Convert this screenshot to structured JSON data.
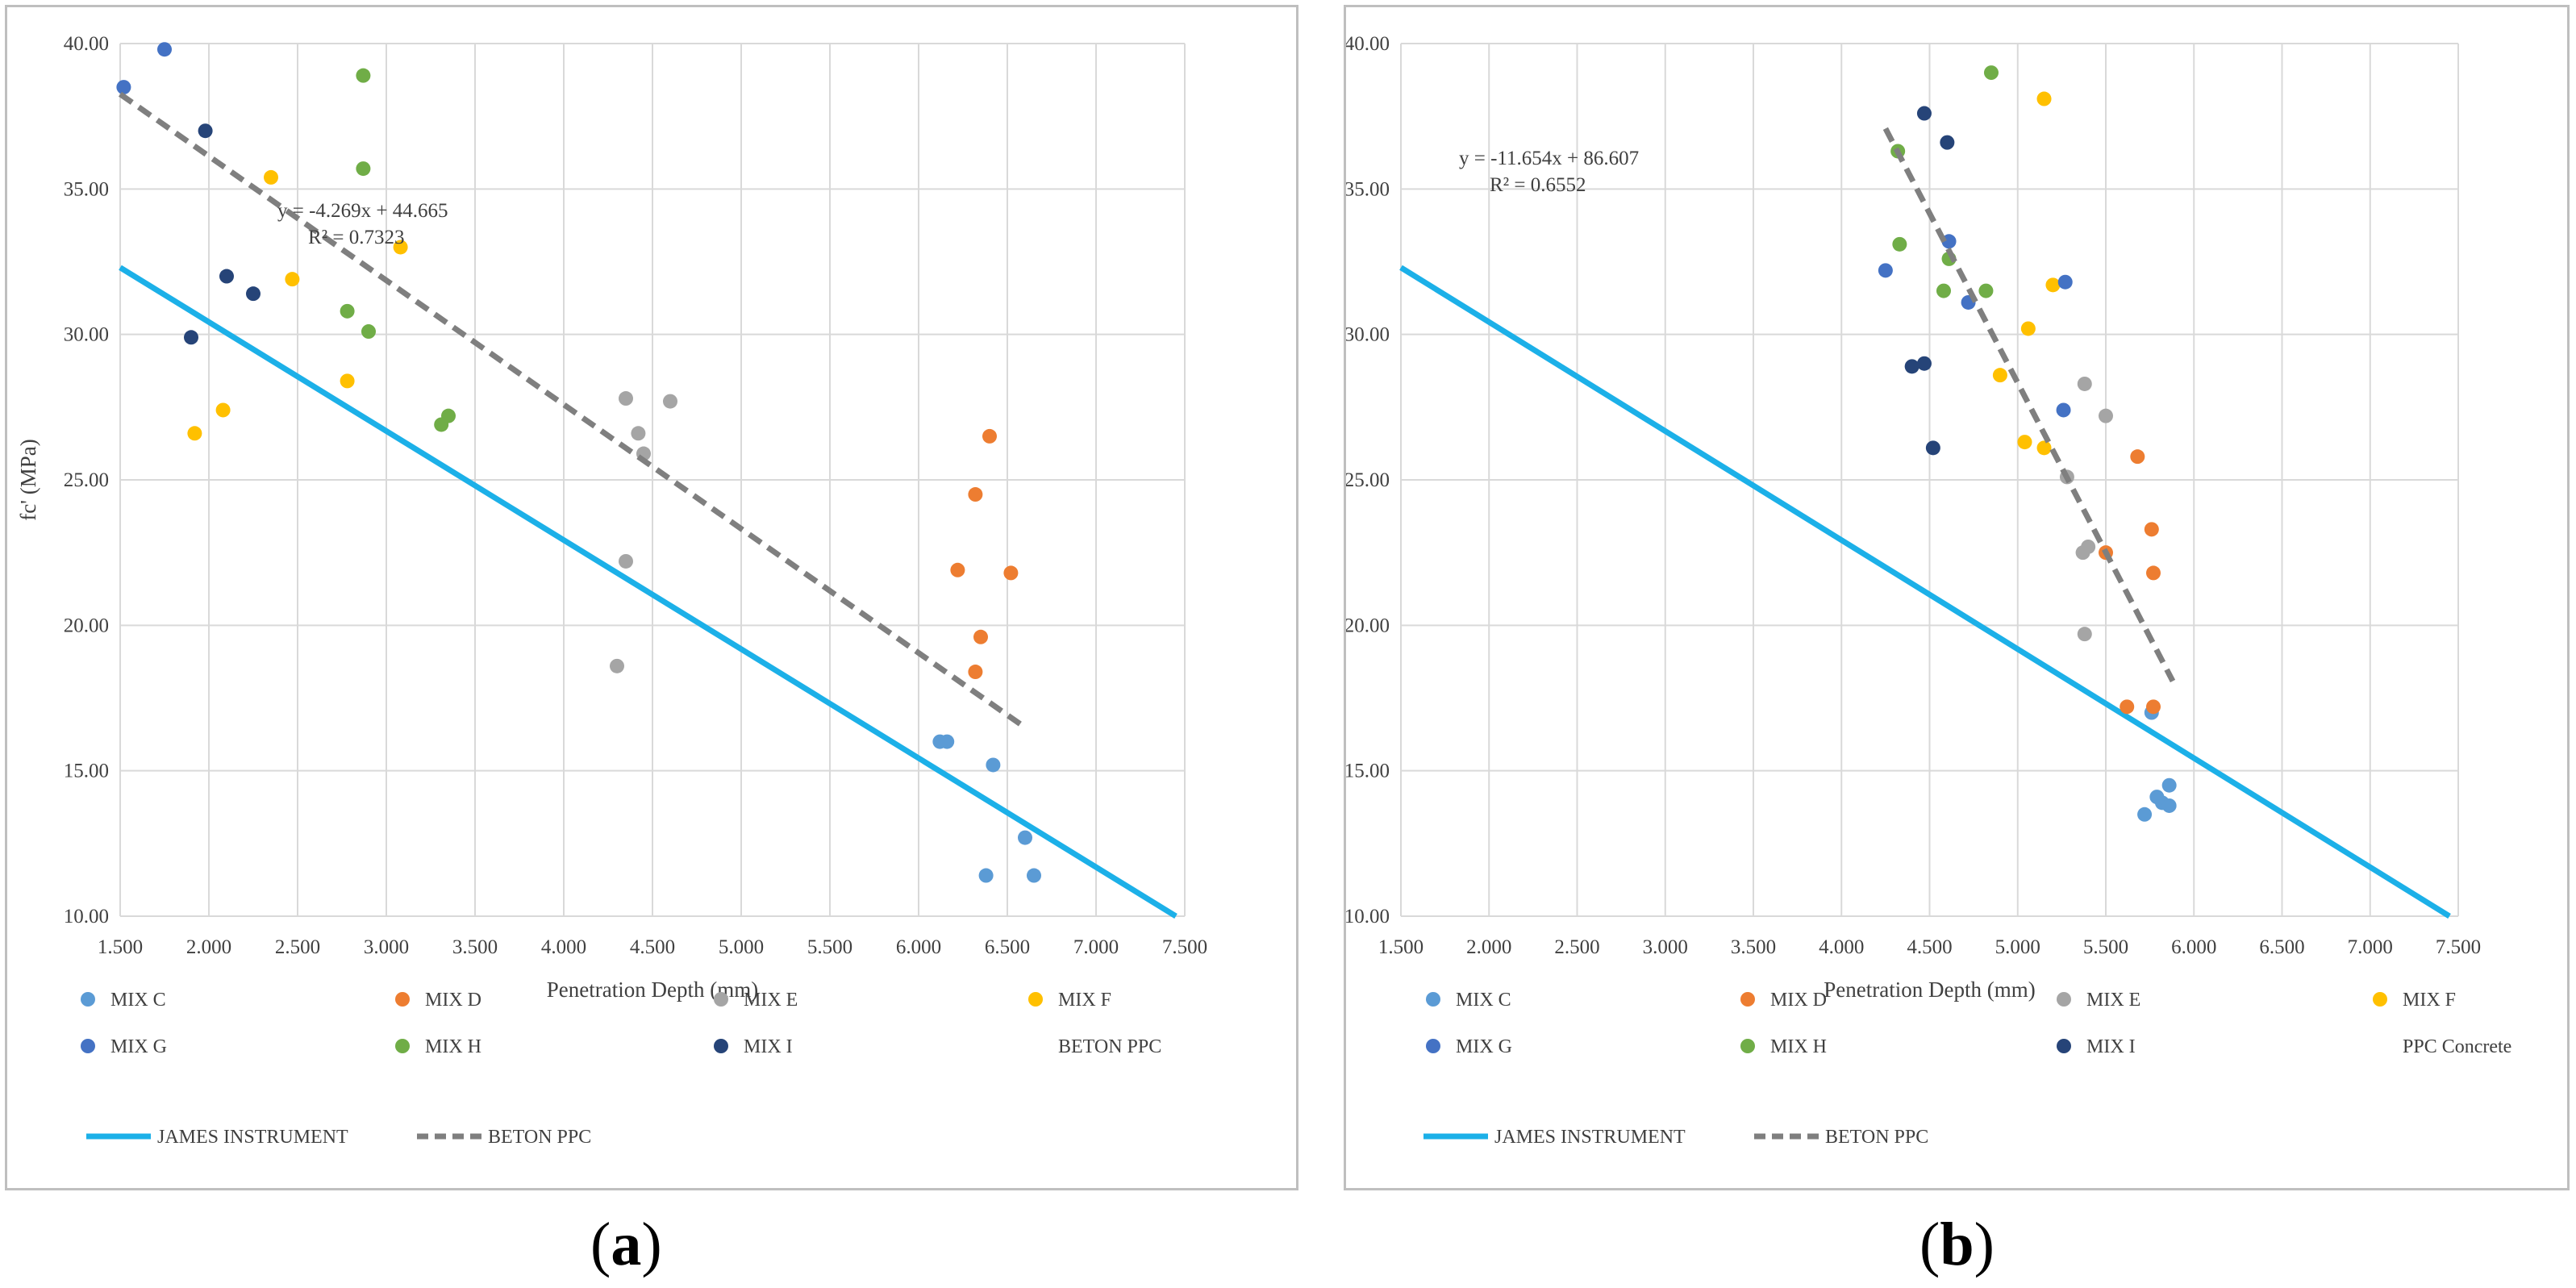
{
  "colors": {
    "MIX C": "#5b9bd5",
    "MIX D": "#ed7d31",
    "MIX E": "#a5a5a5",
    "MIX F": "#ffc000",
    "MIX G": "#4472c4",
    "MIX H": "#70ad47",
    "MIX I": "#264478",
    "JAMES INSTRUMENT": "#1cb0e8",
    "BETON PPC": "#7f7f7f",
    "grid": "#d9d9d9"
  },
  "chart_data": [
    {
      "type": "scatter",
      "panel_label": "a",
      "caption": {
        "open": "(",
        "letter": "a",
        "close": ")"
      },
      "title": "",
      "xlabel": "Penetration Depth (mm)",
      "ylabel": "fc' (MPa)",
      "xlim": [
        1.5,
        7.5
      ],
      "ylim": [
        10,
        40
      ],
      "xticks": [
        "1.500",
        "2.000",
        "2.500",
        "3.000",
        "3.500",
        "4.000",
        "4.500",
        "5.000",
        "5.500",
        "6.000",
        "6.500",
        "7.000",
        "7.500"
      ],
      "yticks": [
        "10.00",
        "15.00",
        "20.00",
        "25.00",
        "30.00",
        "35.00",
        "40.00"
      ],
      "grid": true,
      "series": [
        {
          "name": "MIX C",
          "points": [
            [
              6.12,
              16.0
            ],
            [
              6.16,
              16.0
            ],
            [
              6.42,
              15.2
            ],
            [
              6.6,
              12.7
            ],
            [
              6.38,
              11.4
            ],
            [
              6.65,
              11.4
            ]
          ]
        },
        {
          "name": "MIX D",
          "points": [
            [
              6.4,
              26.5
            ],
            [
              6.32,
              24.5
            ],
            [
              6.22,
              21.9
            ],
            [
              6.52,
              21.8
            ],
            [
              6.35,
              19.6
            ],
            [
              6.32,
              18.4
            ]
          ]
        },
        {
          "name": "MIX E",
          "points": [
            [
              4.35,
              27.8
            ],
            [
              4.6,
              27.7
            ],
            [
              4.42,
              26.6
            ],
            [
              4.45,
              25.9
            ],
            [
              4.35,
              22.2
            ],
            [
              4.3,
              18.6
            ]
          ]
        },
        {
          "name": "MIX F",
          "points": [
            [
              2.35,
              35.4
            ],
            [
              3.08,
              33.0
            ],
            [
              2.47,
              31.9
            ],
            [
              2.78,
              28.4
            ],
            [
              2.08,
              27.4
            ],
            [
              1.92,
              26.6
            ]
          ]
        },
        {
          "name": "MIX G",
          "points": [
            [
              1.75,
              39.8
            ],
            [
              1.52,
              38.5
            ]
          ]
        },
        {
          "name": "MIX H",
          "points": [
            [
              2.87,
              38.9
            ],
            [
              2.87,
              35.7
            ],
            [
              2.78,
              30.8
            ],
            [
              2.9,
              30.1
            ],
            [
              3.35,
              27.2
            ],
            [
              3.31,
              26.9
            ]
          ]
        },
        {
          "name": "MIX I",
          "points": [
            [
              1.98,
              37.0
            ],
            [
              2.1,
              32.0
            ],
            [
              2.25,
              31.4
            ],
            [
              1.9,
              29.9
            ]
          ]
        }
      ],
      "reference_line": {
        "name": "JAMES INSTRUMENT",
        "x": [
          1.5,
          7.45
        ],
        "y": [
          32.3,
          10.0
        ]
      },
      "trendline": {
        "name": "BETON PPC",
        "slope": -4.269,
        "intercept": 44.665,
        "x_range": [
          1.5,
          6.6
        ],
        "equation": "y = -4.269x + 44.665",
        "r_squared": "R² = 0.7323"
      },
      "legend": {
        "position": "bottom",
        "items": [
          "MIX C",
          "MIX D",
          "MIX E",
          "MIX F",
          "MIX G",
          "MIX H",
          "MIX I",
          "BETON PPC"
        ],
        "line_items": [
          "JAMES INSTRUMENT",
          "BETON PPC"
        ]
      }
    },
    {
      "type": "scatter",
      "panel_label": "b",
      "caption": {
        "open": "(",
        "letter": "b",
        "close": ")"
      },
      "title": "",
      "xlabel": "Penetration Depth (mm)",
      "ylabel": "fc' (MPa)",
      "xlim": [
        1.5,
        7.5
      ],
      "ylim": [
        10,
        40
      ],
      "xticks": [
        "1.500",
        "2.000",
        "2.500",
        "3.000",
        "3.500",
        "4.000",
        "4.500",
        "5.000",
        "5.500",
        "6.000",
        "6.500",
        "7.000",
        "7.500"
      ],
      "yticks": [
        "10.00",
        "15.00",
        "20.00",
        "25.00",
        "30.00",
        "35.00",
        "40.00"
      ],
      "grid": true,
      "series": [
        {
          "name": "MIX C",
          "points": [
            [
              5.76,
              17.0
            ],
            [
              5.86,
              14.5
            ],
            [
              5.79,
              14.1
            ],
            [
              5.82,
              13.9
            ],
            [
              5.86,
              13.8
            ],
            [
              5.72,
              13.5
            ]
          ]
        },
        {
          "name": "MIX D",
          "points": [
            [
              5.68,
              25.8
            ],
            [
              5.76,
              23.3
            ],
            [
              5.5,
              22.5
            ],
            [
              5.77,
              21.8
            ],
            [
              5.62,
              17.2
            ],
            [
              5.77,
              17.2
            ]
          ]
        },
        {
          "name": "MIX E",
          "points": [
            [
              5.38,
              28.3
            ],
            [
              5.5,
              27.2
            ],
            [
              5.28,
              25.1
            ],
            [
              5.4,
              22.7
            ],
            [
              5.37,
              22.5
            ],
            [
              5.38,
              19.7
            ]
          ]
        },
        {
          "name": "MIX F",
          "points": [
            [
              5.15,
              38.1
            ],
            [
              5.2,
              31.7
            ],
            [
              5.06,
              30.2
            ],
            [
              4.9,
              28.6
            ],
            [
              5.04,
              26.3
            ],
            [
              5.15,
              26.1
            ]
          ]
        },
        {
          "name": "MIX G",
          "points": [
            [
              4.61,
              33.2
            ],
            [
              5.27,
              31.8
            ],
            [
              4.25,
              32.2
            ],
            [
              4.72,
              31.1
            ],
            [
              5.26,
              27.4
            ]
          ]
        },
        {
          "name": "MIX H",
          "points": [
            [
              4.85,
              39.0
            ],
            [
              4.32,
              36.3
            ],
            [
              4.33,
              33.1
            ],
            [
              4.61,
              32.6
            ],
            [
              4.58,
              31.5
            ],
            [
              4.82,
              31.5
            ]
          ]
        },
        {
          "name": "MIX I",
          "points": [
            [
              4.47,
              37.6
            ],
            [
              4.6,
              36.6
            ],
            [
              4.4,
              28.9
            ],
            [
              4.47,
              29.0
            ],
            [
              4.52,
              26.1
            ]
          ]
        }
      ],
      "reference_line": {
        "name": "JAMES INSTRUMENT",
        "x": [
          1.5,
          7.45
        ],
        "y": [
          32.3,
          10.0
        ]
      },
      "trendline": {
        "name": "BETON PPC",
        "slope": -11.654,
        "intercept": 86.607,
        "x_range": [
          4.25,
          5.88
        ],
        "equation": "y = -11.654x + 86.607",
        "r_squared": "R² = 0.6552"
      },
      "legend": {
        "position": "bottom",
        "items": [
          "MIX C",
          "MIX D",
          "MIX E",
          "MIX F",
          "MIX G",
          "MIX H",
          "MIX I",
          "PPC Concrete"
        ],
        "line_items": [
          "JAMES INSTRUMENT",
          "BETON PPC"
        ]
      }
    }
  ]
}
